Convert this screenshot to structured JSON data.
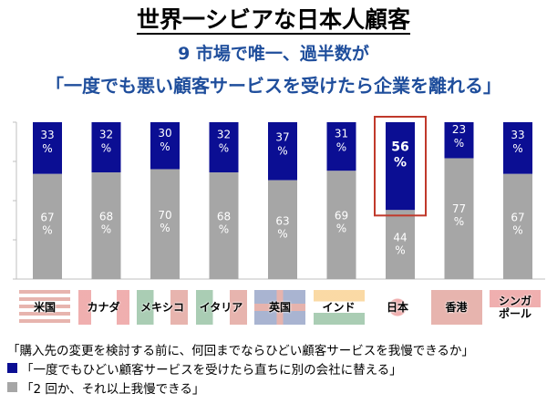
{
  "header": {
    "title": "世界一シビアな日本人顧客",
    "subtitle1": "9 市場で唯一、過半数が",
    "subtitle2": "「一度でも悪い顧客サービスを受けたら企業を離れる」"
  },
  "colors": {
    "navy": "#0b0e93",
    "gray": "#a6a6a6",
    "highlight": "#c0392b",
    "subtitle": "#1f4e9c"
  },
  "flags": [
    {
      "label": "米国",
      "icon": "us-flag-icon"
    },
    {
      "label": "カナダ",
      "icon": "canada-flag-icon"
    },
    {
      "label": "メキシコ",
      "icon": "mexico-flag-icon"
    },
    {
      "label": "イタリア",
      "icon": "italy-flag-icon"
    },
    {
      "label": "英国",
      "icon": "uk-flag-icon"
    },
    {
      "label": "インド",
      "icon": "india-flag-icon"
    },
    {
      "label": "日本",
      "icon": "japan-flag-icon"
    },
    {
      "label": "香港",
      "icon": "hongkong-flag-icon"
    },
    {
      "label": "シンガ\nポール",
      "icon": "singapore-flag-icon"
    }
  ],
  "legend": {
    "question": "「購入先の変更を検討する前に、何回までならひどい顧客サービスを我慢できるか」",
    "items": [
      {
        "label": "「一度でもひどい顧客サービスを受けたら直ちに別の会社に替える」",
        "color": "#0b0e93"
      },
      {
        "label": "「2 回か、それ以上我慢できる」",
        "color": "#a6a6a6"
      }
    ]
  },
  "chart_data": {
    "type": "bar",
    "stacked": true,
    "percent_stacked": true,
    "categories": [
      "米国",
      "カナダ",
      "メキシコ",
      "イタリア",
      "英国",
      "インド",
      "日本",
      "香港",
      "シンガポール"
    ],
    "series": [
      {
        "name": "「一度でもひどい顧客サービスを受けたら直ちに別の会社に替える」",
        "values": [
          33,
          32,
          30,
          32,
          37,
          31,
          56,
          23,
          33
        ],
        "color": "#0b0e93"
      },
      {
        "name": "「2 回か、それ以上我慢できる」",
        "values": [
          67,
          68,
          70,
          68,
          63,
          69,
          44,
          77,
          67
        ],
        "color": "#a6a6a6"
      }
    ],
    "value_suffix": "%",
    "highlight_category": "日本",
    "ylim": [
      0,
      100
    ],
    "grid": false
  }
}
